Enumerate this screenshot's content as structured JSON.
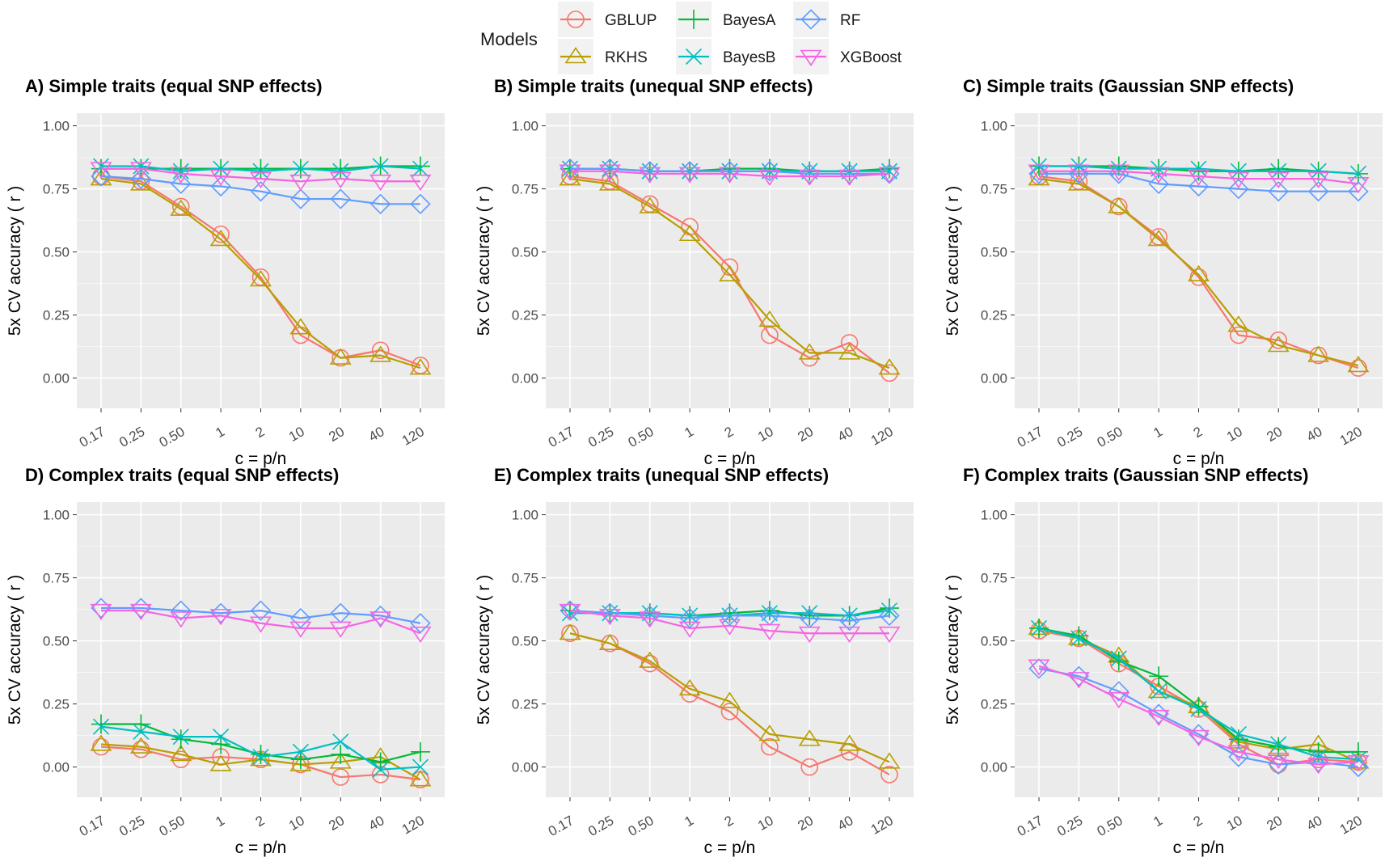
{
  "legend": {
    "title": "Models",
    "entries": [
      {
        "name": "GBLUP",
        "color": "#F8766D",
        "shape": "circle"
      },
      {
        "name": "RKHS",
        "color": "#B79F00",
        "shape": "triangle-up"
      },
      {
        "name": "BayesA",
        "color": "#00BA38",
        "shape": "plus"
      },
      {
        "name": "BayesB",
        "color": "#00BFC4",
        "shape": "cross"
      },
      {
        "name": "RF",
        "color": "#619CFF",
        "shape": "diamond"
      },
      {
        "name": "XGBoost",
        "color": "#F564E3",
        "shape": "triangle-down"
      }
    ]
  },
  "chart_data": [
    {
      "type": "line",
      "title": "A) Simple traits (equal SNP effects)",
      "xlabel": "c = p/n",
      "ylabel": "5x CV accuracy ( r )",
      "categories": [
        "0.17",
        "0.25",
        "0.50",
        "1",
        "2",
        "10",
        "20",
        "40",
        "120"
      ],
      "yticks": [
        "0.00",
        "0.25",
        "0.50",
        "0.75",
        "1.00"
      ],
      "ylim": [
        -0.12,
        1.05
      ],
      "series": [
        {
          "name": "GBLUP",
          "values": [
            0.8,
            0.78,
            0.68,
            0.57,
            0.4,
            0.17,
            0.08,
            0.11,
            0.05
          ]
        },
        {
          "name": "RKHS",
          "values": [
            0.79,
            0.77,
            0.67,
            0.55,
            0.39,
            0.2,
            0.08,
            0.09,
            0.04
          ]
        },
        {
          "name": "BayesA",
          "values": [
            0.83,
            0.83,
            0.83,
            0.83,
            0.83,
            0.83,
            0.83,
            0.84,
            0.84
          ]
        },
        {
          "name": "BayesB",
          "values": [
            0.84,
            0.84,
            0.82,
            0.83,
            0.82,
            0.83,
            0.82,
            0.84,
            0.83
          ]
        },
        {
          "name": "RF",
          "values": [
            0.8,
            0.79,
            0.77,
            0.76,
            0.74,
            0.71,
            0.71,
            0.69,
            0.69
          ]
        },
        {
          "name": "XGBoost",
          "values": [
            0.83,
            0.83,
            0.81,
            0.8,
            0.79,
            0.78,
            0.79,
            0.78,
            0.78
          ]
        }
      ]
    },
    {
      "type": "line",
      "title": "B) Simple traits (unequal SNP effects)",
      "xlabel": "c = p/n",
      "ylabel": "5x CV accuracy ( r )",
      "categories": [
        "0.17",
        "0.25",
        "0.50",
        "1",
        "2",
        "10",
        "20",
        "40",
        "120"
      ],
      "yticks": [
        "0.00",
        "0.25",
        "0.50",
        "0.75",
        "1.00"
      ],
      "ylim": [
        -0.12,
        1.05
      ],
      "series": [
        {
          "name": "GBLUP",
          "values": [
            0.8,
            0.78,
            0.69,
            0.6,
            0.44,
            0.17,
            0.08,
            0.14,
            0.02
          ]
        },
        {
          "name": "RKHS",
          "values": [
            0.79,
            0.77,
            0.68,
            0.57,
            0.41,
            0.23,
            0.1,
            0.1,
            0.04
          ]
        },
        {
          "name": "BayesA",
          "values": [
            0.83,
            0.83,
            0.82,
            0.82,
            0.83,
            0.83,
            0.82,
            0.82,
            0.83
          ]
        },
        {
          "name": "BayesB",
          "values": [
            0.83,
            0.83,
            0.82,
            0.82,
            0.82,
            0.82,
            0.82,
            0.82,
            0.82
          ]
        },
        {
          "name": "RF",
          "values": [
            0.83,
            0.83,
            0.82,
            0.82,
            0.82,
            0.82,
            0.81,
            0.81,
            0.81
          ]
        },
        {
          "name": "XGBoost",
          "values": [
            0.82,
            0.82,
            0.81,
            0.81,
            0.81,
            0.8,
            0.8,
            0.8,
            0.81
          ]
        }
      ]
    },
    {
      "type": "line",
      "title": "C) Simple traits (Gaussian SNP effects)",
      "xlabel": "c = p/n",
      "ylabel": "5x CV accuracy ( r )",
      "categories": [
        "0.17",
        "0.25",
        "0.50",
        "1",
        "2",
        "10",
        "20",
        "40",
        "120"
      ],
      "yticks": [
        "0.00",
        "0.25",
        "0.50",
        "0.75",
        "1.00"
      ],
      "ylim": [
        -0.12,
        1.05
      ],
      "series": [
        {
          "name": "GBLUP",
          "values": [
            0.8,
            0.78,
            0.68,
            0.56,
            0.4,
            0.17,
            0.15,
            0.09,
            0.04
          ]
        },
        {
          "name": "RKHS",
          "values": [
            0.79,
            0.77,
            0.68,
            0.55,
            0.41,
            0.21,
            0.13,
            0.09,
            0.05
          ]
        },
        {
          "name": "BayesA",
          "values": [
            0.84,
            0.84,
            0.84,
            0.83,
            0.82,
            0.82,
            0.83,
            0.82,
            0.81
          ]
        },
        {
          "name": "BayesB",
          "values": [
            0.84,
            0.84,
            0.83,
            0.83,
            0.83,
            0.82,
            0.82,
            0.82,
            0.81
          ]
        },
        {
          "name": "RF",
          "values": [
            0.81,
            0.81,
            0.81,
            0.77,
            0.76,
            0.75,
            0.74,
            0.74,
            0.74
          ]
        },
        {
          "name": "XGBoost",
          "values": [
            0.82,
            0.82,
            0.82,
            0.81,
            0.8,
            0.79,
            0.79,
            0.79,
            0.77
          ]
        }
      ]
    },
    {
      "type": "line",
      "title": "D) Complex traits  (equal SNP effects)",
      "xlabel": "c = p/n",
      "ylabel": "5x CV accuracy ( r )",
      "categories": [
        "0.17",
        "0.25",
        "0.50",
        "1",
        "2",
        "10",
        "20",
        "40",
        "120"
      ],
      "yticks": [
        "0.00",
        "0.25",
        "0.50",
        "0.75",
        "1.00"
      ],
      "ylim": [
        -0.12,
        1.05
      ],
      "series": [
        {
          "name": "GBLUP",
          "values": [
            0.08,
            0.07,
            0.03,
            0.04,
            0.03,
            0.01,
            -0.04,
            -0.03,
            -0.05
          ]
        },
        {
          "name": "RKHS",
          "values": [
            0.09,
            0.08,
            0.05,
            0.01,
            0.03,
            0.01,
            0.02,
            0.04,
            -0.05
          ]
        },
        {
          "name": "BayesA",
          "values": [
            0.17,
            0.17,
            0.11,
            0.09,
            0.05,
            0.03,
            0.05,
            0.02,
            0.06
          ]
        },
        {
          "name": "BayesB",
          "values": [
            0.16,
            0.14,
            0.12,
            0.12,
            0.04,
            0.06,
            0.1,
            -0.01,
            0.0
          ]
        },
        {
          "name": "RF",
          "values": [
            0.63,
            0.63,
            0.62,
            0.61,
            0.62,
            0.59,
            0.61,
            0.6,
            0.57
          ]
        },
        {
          "name": "XGBoost",
          "values": [
            0.62,
            0.62,
            0.59,
            0.6,
            0.57,
            0.55,
            0.55,
            0.59,
            0.53
          ]
        }
      ]
    },
    {
      "type": "line",
      "title": "E) Complex traits  (unequal SNP effects)",
      "xlabel": "c = p/n",
      "ylabel": "5x CV accuracy ( r )",
      "categories": [
        "0.17",
        "0.25",
        "0.50",
        "1",
        "2",
        "10",
        "20",
        "40",
        "120"
      ],
      "yticks": [
        "0.00",
        "0.25",
        "0.50",
        "0.75",
        "1.00"
      ],
      "ylim": [
        -0.12,
        1.05
      ],
      "series": [
        {
          "name": "GBLUP",
          "values": [
            0.53,
            0.49,
            0.41,
            0.29,
            0.22,
            0.08,
            0.0,
            0.06,
            -0.03
          ]
        },
        {
          "name": "RKHS",
          "values": [
            0.53,
            0.49,
            0.42,
            0.31,
            0.26,
            0.13,
            0.11,
            0.09,
            0.02
          ]
        },
        {
          "name": "BayesA",
          "values": [
            0.62,
            0.61,
            0.61,
            0.6,
            0.61,
            0.62,
            0.6,
            0.6,
            0.63
          ]
        },
        {
          "name": "BayesB",
          "values": [
            0.61,
            0.61,
            0.61,
            0.6,
            0.6,
            0.61,
            0.61,
            0.6,
            0.62
          ]
        },
        {
          "name": "RF",
          "values": [
            0.62,
            0.61,
            0.6,
            0.59,
            0.6,
            0.6,
            0.59,
            0.58,
            0.6
          ]
        },
        {
          "name": "XGBoost",
          "values": [
            0.62,
            0.6,
            0.59,
            0.55,
            0.56,
            0.54,
            0.53,
            0.53,
            0.53
          ]
        }
      ]
    },
    {
      "type": "line",
      "title": "F) Complex traits  (Gaussian SNP effects)",
      "xlabel": "c = p/n",
      "ylabel": "5x CV accuracy ( r )",
      "categories": [
        "0.17",
        "0.25",
        "0.50",
        "1",
        "2",
        "10",
        "20",
        "40",
        "120"
      ],
      "yticks": [
        "0.00",
        "0.25",
        "0.50",
        "0.75",
        "1.00"
      ],
      "ylim": [
        -0.12,
        1.05
      ],
      "series": [
        {
          "name": "GBLUP",
          "values": [
            0.54,
            0.51,
            0.41,
            0.32,
            0.23,
            0.09,
            0.01,
            0.03,
            0.02
          ]
        },
        {
          "name": "RKHS",
          "values": [
            0.55,
            0.51,
            0.44,
            0.3,
            0.24,
            0.1,
            0.07,
            0.09,
            0.02
          ]
        },
        {
          "name": "BayesA",
          "values": [
            0.55,
            0.52,
            0.42,
            0.36,
            0.24,
            0.11,
            0.08,
            0.06,
            0.06
          ]
        },
        {
          "name": "BayesB",
          "values": [
            0.55,
            0.51,
            0.43,
            0.3,
            0.23,
            0.13,
            0.09,
            0.04,
            0.03
          ]
        },
        {
          "name": "RF",
          "values": [
            0.39,
            0.36,
            0.3,
            0.21,
            0.13,
            0.04,
            0.01,
            0.02,
            0.0
          ]
        },
        {
          "name": "XGBoost",
          "values": [
            0.4,
            0.35,
            0.27,
            0.2,
            0.12,
            0.06,
            0.03,
            0.01,
            0.02
          ]
        }
      ]
    }
  ]
}
